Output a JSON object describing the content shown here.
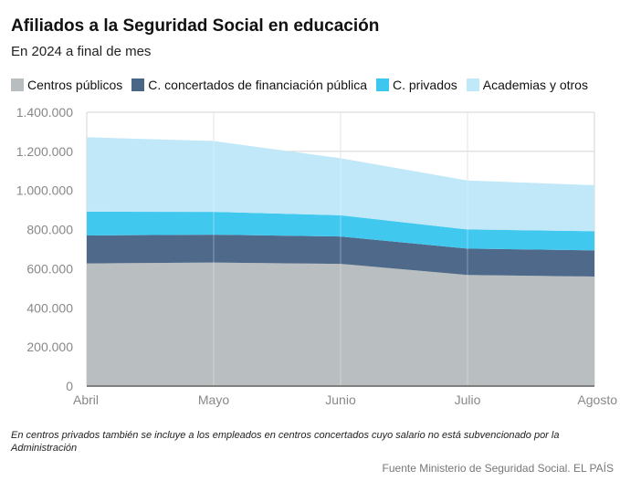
{
  "chart_data": {
    "type": "area",
    "stacked": true,
    "title": "Afiliados a la Seguridad Social en educación",
    "subtitle": "En 2024 a final de mes",
    "categories": [
      "Abril",
      "Mayo",
      "Junio",
      "Julio",
      "Agosto"
    ],
    "series": [
      {
        "name": "Centros públicos",
        "color": "#b8bdbf",
        "values": [
          627000,
          632000,
          625000,
          568000,
          560000
        ]
      },
      {
        "name": "C. concertados de financiación pública",
        "color": "#4a6687",
        "values": [
          143000,
          142000,
          140000,
          135000,
          134000
        ]
      },
      {
        "name": "C. privados",
        "color": "#3dc7ef",
        "values": [
          122000,
          117000,
          108000,
          98000,
          98000
        ]
      },
      {
        "name": "Academias y otros",
        "color": "#bfe8f8",
        "values": [
          380000,
          362000,
          292000,
          250000,
          235000
        ]
      }
    ],
    "ylim": [
      0,
      1400000
    ],
    "yticks": [
      0,
      200000,
      400000,
      600000,
      800000,
      1000000,
      1200000,
      1400000
    ],
    "ytick_labels": [
      "0",
      "200.000",
      "400.000",
      "600.000",
      "800.000",
      "1.000.000",
      "1.200.000",
      "1.400.000"
    ],
    "xlabel": "",
    "ylabel": "",
    "legend_position": "top"
  },
  "note": "En centros privados también se incluye a los empleados en centros concertados cuyo salario no está subvencionado por la Administración",
  "source": "Fuente Ministerio de Seguridad Social. EL PAÍS"
}
